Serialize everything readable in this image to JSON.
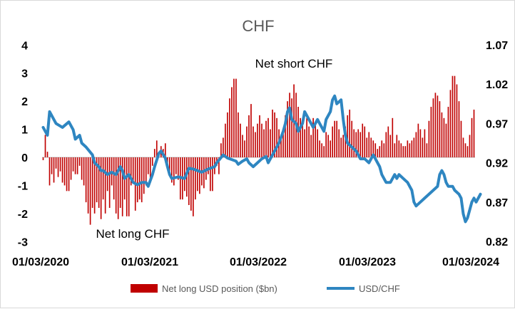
{
  "chart_data": {
    "type": "bar+line",
    "title": "CHF",
    "x_tick_labels": [
      "01/03/2020",
      "01/03/2021",
      "01/03/2022",
      "01/03/2023",
      "01/03/2024"
    ],
    "y_left": {
      "ticks": [
        "4",
        "3",
        "2",
        "1",
        "0",
        "-1",
        "-2",
        "-3"
      ],
      "lim": [
        -3,
        4
      ]
    },
    "y_right": {
      "ticks": [
        "1.07",
        "1.02",
        "0.97",
        "0.92",
        "0.87",
        "0.82"
      ],
      "lim": [
        0.82,
        1.07
      ]
    },
    "annotations": [
      "Net short CHF",
      "Net long CHF"
    ],
    "legend": {
      "bar_label": "Net long USD position ($bn)",
      "line_label": "USD/CHF",
      "placement": "bottom"
    },
    "colors": {
      "bar": "#c00000",
      "line": "#2e86c1"
    },
    "series": [
      {
        "name": "Net long USD position ($bn)",
        "kind": "bar",
        "values": [
          -0.1,
          0.8,
          0.2,
          -1.0,
          -0.6,
          -0.9,
          -0.4,
          -0.7,
          -0.5,
          -0.9,
          -1.0,
          -1.2,
          -1.2,
          -0.8,
          -0.5,
          -0.6,
          -0.6,
          -0.3,
          -0.8,
          -1.0,
          -1.6,
          -2.0,
          -2.4,
          -1.8,
          -2.0,
          -1.6,
          -1.8,
          -2.2,
          -1.5,
          -2.0,
          -1.2,
          -1.8,
          -1.0,
          -1.5,
          -2.0,
          -2.2,
          -1.8,
          -2.1,
          -1.5,
          -2.1,
          -2.1,
          -1.0,
          -0.9,
          -1.9,
          -1.6,
          -1.5,
          -1.6,
          -1.3,
          -1.0,
          -0.6,
          -0.9,
          -0.3,
          0.3,
          0.6,
          0.2,
          0.4,
          0.3,
          0.5,
          -0.3,
          -0.5,
          -0.9,
          -1.0,
          -0.6,
          -0.8,
          -1.5,
          -1.5,
          -1.2,
          -1.4,
          -1.7,
          -1.9,
          -2.1,
          -1.5,
          -1.2,
          -1.3,
          -1.0,
          -1.1,
          -0.8,
          -0.6,
          -1.2,
          -1.2,
          -0.6,
          -0.3,
          -0.6,
          0.5,
          0.7,
          1.2,
          1.6,
          2.1,
          2.5,
          2.8,
          2.8,
          1.6,
          1.2,
          0.8,
          0.6,
          1.1,
          1.5,
          1.9,
          1.1,
          0.9,
          1.2,
          1.5,
          1.2,
          1.0,
          1.3,
          1.4,
          1.0,
          1.7,
          1.6,
          1.4,
          1.0,
          0.8,
          0.9,
          1.5,
          2.0,
          2.3,
          2.1,
          2.6,
          2.3,
          1.8,
          1.4,
          1.2,
          1.0,
          1.4,
          1.1,
          0.8,
          1.4,
          1.2,
          1.0,
          0.6,
          0.5,
          0.4,
          0.9,
          0.8,
          0.6,
          1.1,
          1.3,
          1.3,
          1.0,
          0.7,
          0.8,
          1.1,
          1.5,
          1.7,
          1.3,
          1.0,
          0.9,
          1.0,
          0.9,
          1.2,
          1.1,
          0.7,
          0.9,
          0.7,
          0.6,
          0.5,
          0.3,
          0.4,
          0.6,
          0.5,
          0.9,
          1.1,
          0.8,
          1.4,
          0.5,
          0.8,
          0.6,
          0.5,
          0.4,
          0.4,
          0.6,
          0.5,
          0.6,
          0.7,
          0.9,
          1.2,
          1.0,
          0.7,
          1.0,
          0.5,
          1.3,
          1.8,
          2.1,
          2.3,
          2.2,
          2.0,
          1.6,
          1.4,
          1.2,
          1.8,
          2.4,
          2.9,
          2.9,
          2.6,
          2.0,
          1.3,
          0.7,
          0.5,
          0.4,
          0.8,
          1.4,
          1.7
        ]
      },
      {
        "name": "USD/CHF",
        "kind": "line",
        "points": [
          [
            0,
            0.965
          ],
          [
            2,
            0.955
          ],
          [
            3,
            0.985
          ],
          [
            6,
            0.97
          ],
          [
            9,
            0.965
          ],
          [
            12,
            0.972
          ],
          [
            14,
            0.962
          ],
          [
            15,
            0.95
          ],
          [
            17,
            0.955
          ],
          [
            18,
            0.945
          ],
          [
            20,
            0.94
          ],
          [
            23,
            0.93
          ],
          [
            24,
            0.92
          ],
          [
            26,
            0.915
          ],
          [
            27,
            0.91
          ],
          [
            28,
            0.91
          ],
          [
            30,
            0.905
          ],
          [
            32,
            0.908
          ],
          [
            34,
            0.905
          ],
          [
            36,
            0.915
          ],
          [
            37,
            0.91
          ],
          [
            38,
            0.9
          ],
          [
            40,
            0.905
          ],
          [
            42,
            0.895
          ],
          [
            44,
            0.892
          ],
          [
            46,
            0.895
          ],
          [
            48,
            0.895
          ],
          [
            49,
            0.89
          ],
          [
            51,
            0.905
          ],
          [
            52,
            0.915
          ],
          [
            54,
            0.932
          ],
          [
            55,
            0.935
          ],
          [
            57,
            0.926
          ],
          [
            58,
            0.915
          ],
          [
            59,
            0.905
          ],
          [
            60,
            0.9
          ],
          [
            63,
            0.902
          ],
          [
            66,
            0.9
          ],
          [
            68,
            0.913
          ],
          [
            70,
            0.912
          ],
          [
            72,
            0.91
          ],
          [
            74,
            0.908
          ],
          [
            77,
            0.912
          ],
          [
            80,
            0.915
          ],
          [
            81,
            0.92
          ],
          [
            84,
            0.93
          ],
          [
            86,
            0.926
          ],
          [
            88,
            0.924
          ],
          [
            90,
            0.922
          ],
          [
            91,
            0.918
          ],
          [
            93,
            0.922
          ],
          [
            95,
            0.925
          ],
          [
            96,
            0.92
          ],
          [
            98,
            0.915
          ],
          [
            100,
            0.92
          ],
          [
            102,
            0.925
          ],
          [
            104,
            0.928
          ],
          [
            105,
            0.92
          ],
          [
            107,
            0.93
          ],
          [
            109,
            0.94
          ],
          [
            110,
            0.945
          ],
          [
            112,
            0.96
          ],
          [
            113,
            0.97
          ],
          [
            114,
            0.985
          ],
          [
            115,
            0.99
          ],
          [
            116,
            0.975
          ],
          [
            118,
            0.97
          ],
          [
            119,
            0.96
          ],
          [
            121,
            0.97
          ],
          [
            122,
            0.985
          ],
          [
            124,
            0.975
          ],
          [
            126,
            0.965
          ],
          [
            128,
            0.975
          ],
          [
            129,
            0.97
          ],
          [
            131,
            0.96
          ],
          [
            132,
            0.975
          ],
          [
            134,
            0.985
          ],
          [
            135,
            1.0
          ],
          [
            136,
            1.005
          ],
          [
            137,
            0.995
          ],
          [
            139,
            1.0
          ],
          [
            140,
            0.975
          ],
          [
            141,
            0.955
          ],
          [
            142,
            0.945
          ],
          [
            144,
            0.94
          ],
          [
            146,
            0.935
          ],
          [
            147,
            0.93
          ],
          [
            148,
            0.925
          ],
          [
            150,
            0.925
          ],
          [
            152,
            0.92
          ],
          [
            154,
            0.93
          ],
          [
            155,
            0.925
          ],
          [
            157,
            0.915
          ],
          [
            158,
            0.905
          ],
          [
            160,
            0.895
          ],
          [
            162,
            0.895
          ],
          [
            163,
            0.9
          ],
          [
            164,
            0.905
          ],
          [
            165,
            0.9
          ],
          [
            166,
            0.905
          ],
          [
            168,
            0.9
          ],
          [
            170,
            0.895
          ],
          [
            172,
            0.885
          ],
          [
            173,
            0.87
          ],
          [
            174,
            0.865
          ],
          [
            176,
            0.87
          ],
          [
            178,
            0.875
          ],
          [
            180,
            0.88
          ],
          [
            182,
            0.885
          ],
          [
            184,
            0.89
          ],
          [
            185,
            0.905
          ],
          [
            186,
            0.91
          ],
          [
            187,
            0.905
          ],
          [
            188,
            0.895
          ],
          [
            189,
            0.89
          ],
          [
            191,
            0.89
          ],
          [
            192,
            0.885
          ],
          [
            194,
            0.88
          ],
          [
            195,
            0.875
          ],
          [
            196,
            0.855
          ],
          [
            197,
            0.845
          ],
          [
            198,
            0.85
          ],
          [
            199,
            0.86
          ],
          [
            200,
            0.87
          ],
          [
            201,
            0.875
          ],
          [
            202,
            0.87
          ],
          [
            203,
            0.875
          ],
          [
            204,
            0.88
          ]
        ]
      }
    ]
  }
}
